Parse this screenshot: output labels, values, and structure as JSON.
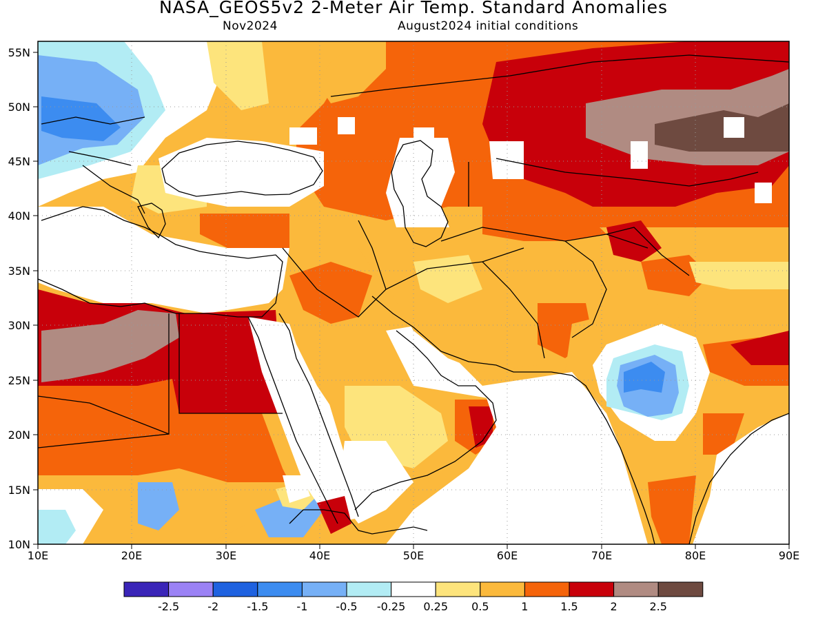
{
  "title": "NASA_GEOS5v2 2-Meter Air Temp. Standard Anomalies",
  "subtitle_left": "Nov2024",
  "subtitle_right": "August2024 initial conditions",
  "lon_labels": [
    "10E",
    "20E",
    "30E",
    "40E",
    "50E",
    "60E",
    "70E",
    "80E",
    "90E"
  ],
  "lat_labels": [
    "55N",
    "50N",
    "45N",
    "40N",
    "35N",
    "30N",
    "25N",
    "20N",
    "15N",
    "10N"
  ],
  "colorbar": {
    "colors": [
      "#3a25b8",
      "#9b82f5",
      "#1f62e0",
      "#3c8cf0",
      "#76b0f6",
      "#b2ecf4",
      "#ffffff",
      "#fde47c",
      "#fbb93c",
      "#f5640a",
      "#c8000a",
      "#b08b82",
      "#6e4a40"
    ],
    "labels": [
      "-2.5",
      "-2",
      "-1.5",
      "-1",
      "-0.5",
      "-0.25",
      "0.25",
      "0.5",
      "1",
      "1.5",
      "2",
      "2.5"
    ]
  },
  "colors": {
    "ocean": "#ffffff",
    "coast": "#000000",
    "grid": "#999999"
  }
}
